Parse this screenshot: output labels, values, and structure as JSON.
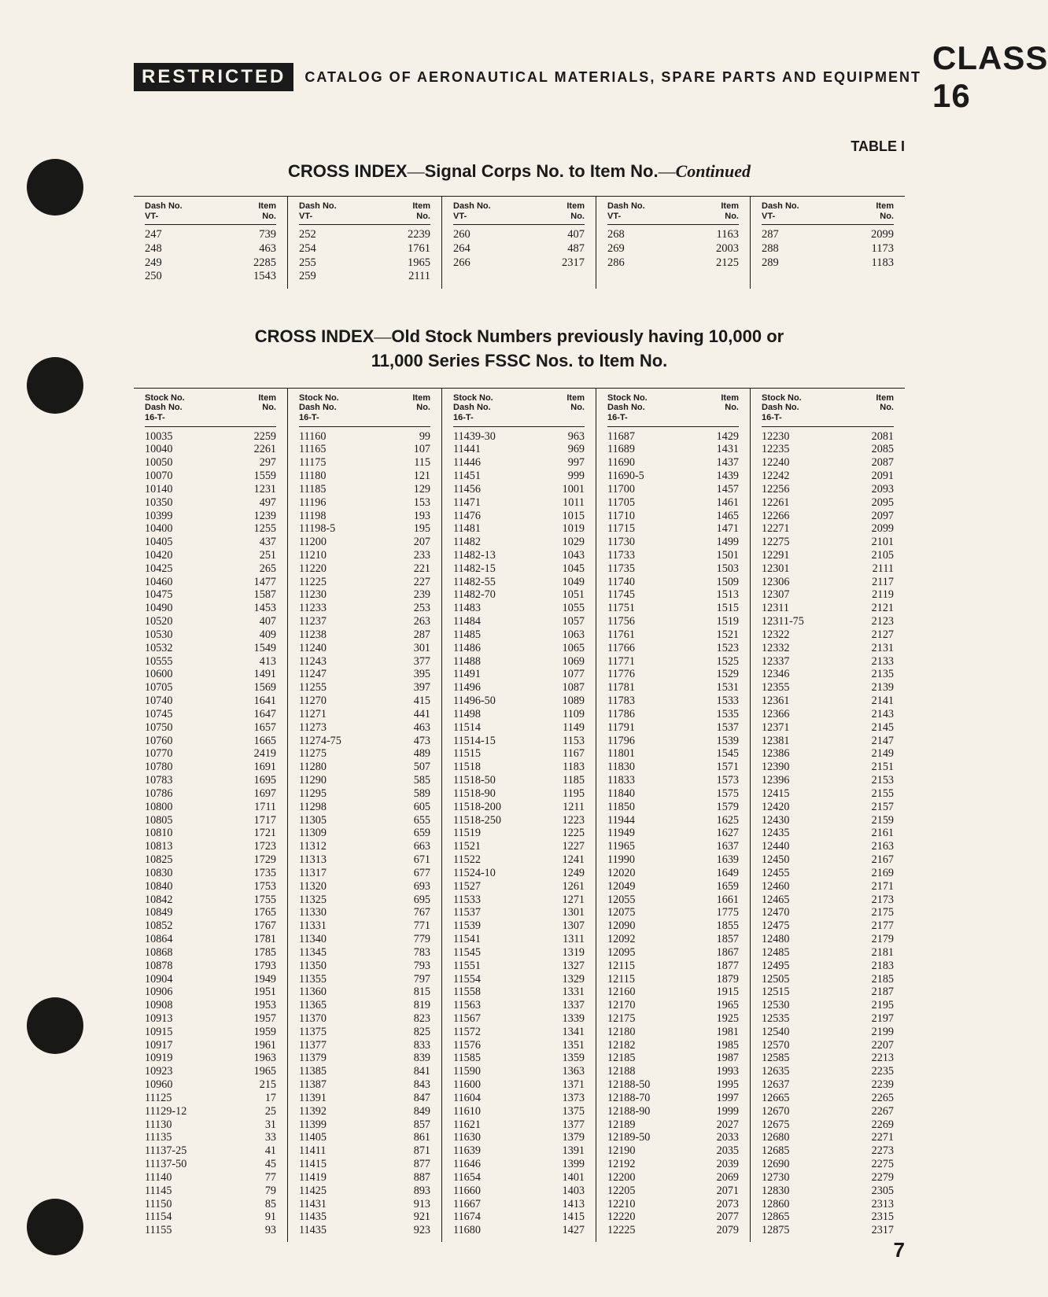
{
  "header": {
    "restricted": "RESTRICTED",
    "catalog_line": "CATALOG OF AERONAUTICAL MATERIALS, SPARE PARTS AND EQUIPMENT",
    "class_label": "CLASS 16",
    "table_label": "TABLE I"
  },
  "section1": {
    "title_a": "CROSS INDEX",
    "title_b": "Signal Corps No. to Item No.",
    "title_c": "Continued",
    "col_head_left": [
      "Dash No.",
      "VT-"
    ],
    "col_head_right": [
      "Item",
      "No."
    ],
    "cols": [
      [
        [
          "247",
          "739"
        ],
        [
          "248",
          "463"
        ],
        [
          "249",
          "2285"
        ],
        [
          "250",
          "1543"
        ]
      ],
      [
        [
          "252",
          "2239"
        ],
        [
          "254",
          "1761"
        ],
        [
          "255",
          "1965"
        ],
        [
          "259",
          "2111"
        ]
      ],
      [
        [
          "260",
          "407"
        ],
        [
          "264",
          "487"
        ],
        [
          "266",
          "2317"
        ]
      ],
      [
        [
          "268",
          "1163"
        ],
        [
          "269",
          "2003"
        ],
        [
          "286",
          "2125"
        ]
      ],
      [
        [
          "287",
          "2099"
        ],
        [
          "288",
          "1173"
        ],
        [
          "289",
          "1183"
        ]
      ]
    ]
  },
  "section2": {
    "title_a": "CROSS INDEX",
    "title_b": "Old Stock Numbers previously having 10,000 or",
    "title_c": "11,000 Series FSSC Nos. to Item No.",
    "col_head_left": [
      "Stock No.",
      "Dash No.",
      "16-T-"
    ],
    "col_head_right": [
      "Item",
      "No."
    ],
    "cols": [
      [
        [
          "10035",
          "2259"
        ],
        [
          "10040",
          "2261"
        ],
        [
          "10050",
          "297"
        ],
        [
          "10070",
          "1559"
        ],
        [
          "10140",
          "1231"
        ],
        [
          "10350",
          "497"
        ],
        [
          "10399",
          "1239"
        ],
        [
          "10400",
          "1255"
        ],
        [
          "10405",
          "437"
        ],
        [
          "10420",
          "251"
        ],
        [
          "10425",
          "265"
        ],
        [
          "10460",
          "1477"
        ],
        [
          "10475",
          "1587"
        ],
        [
          "10490",
          "1453"
        ],
        [
          "10520",
          "407"
        ],
        [
          "10530",
          "409"
        ],
        [
          "10532",
          "1549"
        ],
        [
          "10555",
          "413"
        ],
        [
          "10600",
          "1491"
        ],
        [
          "10705",
          "1569"
        ],
        [
          "10740",
          "1641"
        ],
        [
          "10745",
          "1647"
        ],
        [
          "10750",
          "1657"
        ],
        [
          "10760",
          "1665"
        ],
        [
          "10770",
          "2419"
        ],
        [
          "10780",
          "1691"
        ],
        [
          "10783",
          "1695"
        ],
        [
          "10786",
          "1697"
        ],
        [
          "10800",
          "1711"
        ],
        [
          "10805",
          "1717"
        ],
        [
          "10810",
          "1721"
        ],
        [
          "10813",
          "1723"
        ],
        [
          "10825",
          "1729"
        ],
        [
          "10830",
          "1735"
        ],
        [
          "10840",
          "1753"
        ],
        [
          "10842",
          "1755"
        ],
        [
          "10849",
          "1765"
        ],
        [
          "10852",
          "1767"
        ],
        [
          "10864",
          "1781"
        ],
        [
          "10868",
          "1785"
        ],
        [
          "10878",
          "1793"
        ],
        [
          "10904",
          "1949"
        ],
        [
          "10906",
          "1951"
        ],
        [
          "10908",
          "1953"
        ],
        [
          "10913",
          "1957"
        ],
        [
          "10915",
          "1959"
        ],
        [
          "10917",
          "1961"
        ],
        [
          "10919",
          "1963"
        ],
        [
          "10923",
          "1965"
        ],
        [
          "10960",
          "215"
        ],
        [
          "11125",
          "17"
        ],
        [
          "11129-12",
          "25"
        ],
        [
          "11130",
          "31"
        ],
        [
          "11135",
          "33"
        ],
        [
          "11137-25",
          "41"
        ],
        [
          "11137-50",
          "45"
        ],
        [
          "11140",
          "77"
        ],
        [
          "11145",
          "79"
        ],
        [
          "11150",
          "85"
        ],
        [
          "11154",
          "91"
        ],
        [
          "11155",
          "93"
        ]
      ],
      [
        [
          "11160",
          "99"
        ],
        [
          "11165",
          "107"
        ],
        [
          "11175",
          "115"
        ],
        [
          "11180",
          "121"
        ],
        [
          "11185",
          "129"
        ],
        [
          "11196",
          "153"
        ],
        [
          "11198",
          "193"
        ],
        [
          "11198-5",
          "195"
        ],
        [
          "11200",
          "207"
        ],
        [
          "11210",
          "233"
        ],
        [
          "11220",
          "221"
        ],
        [
          "11225",
          "227"
        ],
        [
          "11230",
          "239"
        ],
        [
          "11233",
          "253"
        ],
        [
          "11237",
          "263"
        ],
        [
          "11238",
          "287"
        ],
        [
          "11240",
          "301"
        ],
        [
          "11243",
          "377"
        ],
        [
          "11247",
          "395"
        ],
        [
          "11255",
          "397"
        ],
        [
          "11270",
          "415"
        ],
        [
          "11271",
          "441"
        ],
        [
          "11273",
          "463"
        ],
        [
          "11274-75",
          "473"
        ],
        [
          "11275",
          "489"
        ],
        [
          "11280",
          "507"
        ],
        [
          "11290",
          "585"
        ],
        [
          "11295",
          "589"
        ],
        [
          "11298",
          "605"
        ],
        [
          "11305",
          "655"
        ],
        [
          "11309",
          "659"
        ],
        [
          "11312",
          "663"
        ],
        [
          "11313",
          "671"
        ],
        [
          "11317",
          "677"
        ],
        [
          "11320",
          "693"
        ],
        [
          "11325",
          "695"
        ],
        [
          "11330",
          "767"
        ],
        [
          "11331",
          "771"
        ],
        [
          "11340",
          "779"
        ],
        [
          "11345",
          "783"
        ],
        [
          "11350",
          "793"
        ],
        [
          "11355",
          "797"
        ],
        [
          "11360",
          "815"
        ],
        [
          "11365",
          "819"
        ],
        [
          "11370",
          "823"
        ],
        [
          "11375",
          "825"
        ],
        [
          "11377",
          "833"
        ],
        [
          "11379",
          "839"
        ],
        [
          "11385",
          "841"
        ],
        [
          "11387",
          "843"
        ],
        [
          "11391",
          "847"
        ],
        [
          "11392",
          "849"
        ],
        [
          "11399",
          "857"
        ],
        [
          "11405",
          "861"
        ],
        [
          "11411",
          "871"
        ],
        [
          "11415",
          "877"
        ],
        [
          "11419",
          "887"
        ],
        [
          "11425",
          "893"
        ],
        [
          "11431",
          "913"
        ],
        [
          "11435",
          "921"
        ],
        [
          "11435",
          "923"
        ]
      ],
      [
        [
          "11439-30",
          "963"
        ],
        [
          "11441",
          "969"
        ],
        [
          "11446",
          "997"
        ],
        [
          "11451",
          "999"
        ],
        [
          "11456",
          "1001"
        ],
        [
          "11471",
          "1011"
        ],
        [
          "11476",
          "1015"
        ],
        [
          "11481",
          "1019"
        ],
        [
          "11482",
          "1029"
        ],
        [
          "11482-13",
          "1043"
        ],
        [
          "11482-15",
          "1045"
        ],
        [
          "11482-55",
          "1049"
        ],
        [
          "11482-70",
          "1051"
        ],
        [
          "11483",
          "1055"
        ],
        [
          "11484",
          "1057"
        ],
        [
          "11485",
          "1063"
        ],
        [
          "11486",
          "1065"
        ],
        [
          "11488",
          "1069"
        ],
        [
          "11491",
          "1077"
        ],
        [
          "11496",
          "1087"
        ],
        [
          "11496-50",
          "1089"
        ],
        [
          "11498",
          "1109"
        ],
        [
          "11514",
          "1149"
        ],
        [
          "11514-15",
          "1153"
        ],
        [
          "11515",
          "1167"
        ],
        [
          "11518",
          "1183"
        ],
        [
          "11518-50",
          "1185"
        ],
        [
          "11518-90",
          "1195"
        ],
        [
          "11518-200",
          "1211"
        ],
        [
          "11518-250",
          "1223"
        ],
        [
          "11519",
          "1225"
        ],
        [
          "11521",
          "1227"
        ],
        [
          "11522",
          "1241"
        ],
        [
          "11524-10",
          "1249"
        ],
        [
          "11527",
          "1261"
        ],
        [
          "11533",
          "1271"
        ],
        [
          "11537",
          "1301"
        ],
        [
          "11539",
          "1307"
        ],
        [
          "11541",
          "1311"
        ],
        [
          "11545",
          "1319"
        ],
        [
          "11551",
          "1327"
        ],
        [
          "11554",
          "1329"
        ],
        [
          "11558",
          "1331"
        ],
        [
          "11563",
          "1337"
        ],
        [
          "11567",
          "1339"
        ],
        [
          "11572",
          "1341"
        ],
        [
          "11576",
          "1351"
        ],
        [
          "11585",
          "1359"
        ],
        [
          "11590",
          "1363"
        ],
        [
          "11600",
          "1371"
        ],
        [
          "11604",
          "1373"
        ],
        [
          "11610",
          "1375"
        ],
        [
          "11621",
          "1377"
        ],
        [
          "11630",
          "1379"
        ],
        [
          "11639",
          "1391"
        ],
        [
          "11646",
          "1399"
        ],
        [
          "11654",
          "1401"
        ],
        [
          "11660",
          "1403"
        ],
        [
          "11667",
          "1413"
        ],
        [
          "11674",
          "1415"
        ],
        [
          "11680",
          "1427"
        ]
      ],
      [
        [
          "11687",
          "1429"
        ],
        [
          "11689",
          "1431"
        ],
        [
          "11690",
          "1437"
        ],
        [
          "11690-5",
          "1439"
        ],
        [
          "11700",
          "1457"
        ],
        [
          "11705",
          "1461"
        ],
        [
          "11710",
          "1465"
        ],
        [
          "11715",
          "1471"
        ],
        [
          "11730",
          "1499"
        ],
        [
          "11733",
          "1501"
        ],
        [
          "11735",
          "1503"
        ],
        [
          "11740",
          "1509"
        ],
        [
          "11745",
          "1513"
        ],
        [
          "11751",
          "1515"
        ],
        [
          "11756",
          "1519"
        ],
        [
          "11761",
          "1521"
        ],
        [
          "11766",
          "1523"
        ],
        [
          "11771",
          "1525"
        ],
        [
          "11776",
          "1529"
        ],
        [
          "11781",
          "1531"
        ],
        [
          "11783",
          "1533"
        ],
        [
          "11786",
          "1535"
        ],
        [
          "11791",
          "1537"
        ],
        [
          "11796",
          "1539"
        ],
        [
          "11801",
          "1545"
        ],
        [
          "11830",
          "1571"
        ],
        [
          "11833",
          "1573"
        ],
        [
          "11840",
          "1575"
        ],
        [
          "11850",
          "1579"
        ],
        [
          "11944",
          "1625"
        ],
        [
          "11949",
          "1627"
        ],
        [
          "11965",
          "1637"
        ],
        [
          "11990",
          "1639"
        ],
        [
          "12020",
          "1649"
        ],
        [
          "12049",
          "1659"
        ],
        [
          "12055",
          "1661"
        ],
        [
          "12075",
          "1775"
        ],
        [
          "12090",
          "1855"
        ],
        [
          "12092",
          "1857"
        ],
        [
          "12095",
          "1867"
        ],
        [
          "12115",
          "1877"
        ],
        [
          "12115",
          "1879"
        ],
        [
          "12160",
          "1915"
        ],
        [
          "12170",
          "1965"
        ],
        [
          "12175",
          "1925"
        ],
        [
          "12180",
          "1981"
        ],
        [
          "12182",
          "1985"
        ],
        [
          "12185",
          "1987"
        ],
        [
          "12188",
          "1993"
        ],
        [
          "12188-50",
          "1995"
        ],
        [
          "12188-70",
          "1997"
        ],
        [
          "12188-90",
          "1999"
        ],
        [
          "12189",
          "2027"
        ],
        [
          "12189-50",
          "2033"
        ],
        [
          "12190",
          "2035"
        ],
        [
          "12192",
          "2039"
        ],
        [
          "12200",
          "2069"
        ],
        [
          "12205",
          "2071"
        ],
        [
          "12210",
          "2073"
        ],
        [
          "12220",
          "2077"
        ],
        [
          "12225",
          "2079"
        ]
      ],
      [
        [
          "12230",
          "2081"
        ],
        [
          "12235",
          "2085"
        ],
        [
          "12240",
          "2087"
        ],
        [
          "12242",
          "2091"
        ],
        [
          "12256",
          "2093"
        ],
        [
          "12261",
          "2095"
        ],
        [
          "12266",
          "2097"
        ],
        [
          "12271",
          "2099"
        ],
        [
          "12275",
          "2101"
        ],
        [
          "12291",
          "2105"
        ],
        [
          "12301",
          "2111"
        ],
        [
          "12306",
          "2117"
        ],
        [
          "12307",
          "2119"
        ],
        [
          "12311",
          "2121"
        ],
        [
          "12311-75",
          "2123"
        ],
        [
          "12322",
          "2127"
        ],
        [
          "12332",
          "2131"
        ],
        [
          "12337",
          "2133"
        ],
        [
          "12346",
          "2135"
        ],
        [
          "12355",
          "2139"
        ],
        [
          "12361",
          "2141"
        ],
        [
          "12366",
          "2143"
        ],
        [
          "12371",
          "2145"
        ],
        [
          "12381",
          "2147"
        ],
        [
          "12386",
          "2149"
        ],
        [
          "12390",
          "2151"
        ],
        [
          "12396",
          "2153"
        ],
        [
          "12415",
          "2155"
        ],
        [
          "12420",
          "2157"
        ],
        [
          "12430",
          "2159"
        ],
        [
          "12435",
          "2161"
        ],
        [
          "12440",
          "2163"
        ],
        [
          "12450",
          "2167"
        ],
        [
          "12455",
          "2169"
        ],
        [
          "12460",
          "2171"
        ],
        [
          "12465",
          "2173"
        ],
        [
          "12470",
          "2175"
        ],
        [
          "12475",
          "2177"
        ],
        [
          "12480",
          "2179"
        ],
        [
          "12485",
          "2181"
        ],
        [
          "12495",
          "2183"
        ],
        [
          "12505",
          "2185"
        ],
        [
          "12515",
          "2187"
        ],
        [
          "12530",
          "2195"
        ],
        [
          "12535",
          "2197"
        ],
        [
          "12540",
          "2199"
        ],
        [
          "12570",
          "2207"
        ],
        [
          "12585",
          "2213"
        ],
        [
          "12635",
          "2235"
        ],
        [
          "12637",
          "2239"
        ],
        [
          "12665",
          "2265"
        ],
        [
          "12670",
          "2267"
        ],
        [
          "12675",
          "2269"
        ],
        [
          "12680",
          "2271"
        ],
        [
          "12685",
          "2273"
        ],
        [
          "12690",
          "2275"
        ],
        [
          "12730",
          "2279"
        ],
        [
          "12830",
          "2305"
        ],
        [
          "12860",
          "2313"
        ],
        [
          "12865",
          "2315"
        ],
        [
          "12875",
          "2317"
        ]
      ]
    ]
  },
  "page_number": "7",
  "style": {
    "bg": "#f5f1e8",
    "ink": "#1a1a1a"
  }
}
